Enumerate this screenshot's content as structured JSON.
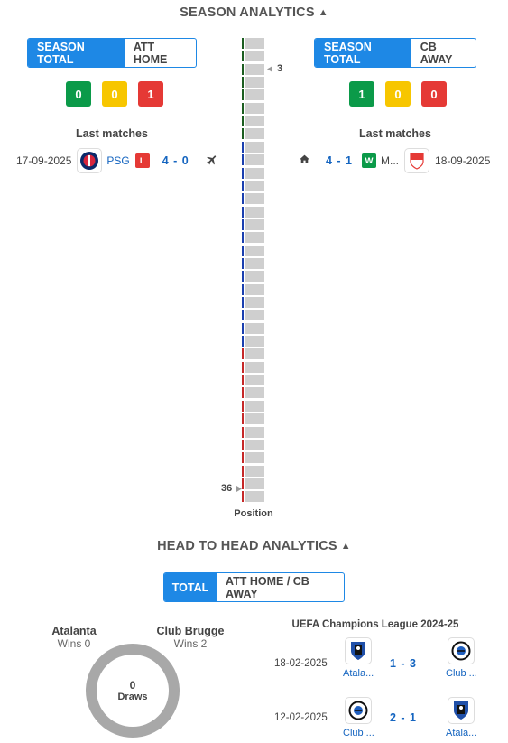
{
  "season": {
    "title": "SEASON ANALYTICS",
    "left": {
      "tabs": [
        "SEASON TOTAL",
        "ATT HOME"
      ],
      "counts": [
        "0",
        "0",
        "1"
      ],
      "last_matches_title": "Last matches",
      "match": {
        "date": "17-09-2025",
        "team": "PSG",
        "result": "L",
        "score": "4 - 0",
        "venue_icon": "plane-icon"
      }
    },
    "right": {
      "tabs": [
        "SEASON TOTAL",
        "CB AWAY"
      ],
      "counts": [
        "1",
        "0",
        "0"
      ],
      "last_matches_title": "Last matches",
      "match": {
        "date": "18-09-2025",
        "team": "M...",
        "result": "W",
        "score": "4 - 1",
        "venue_icon": "home-icon"
      }
    },
    "ladder": {
      "positions_total": 36,
      "marker_top": "3",
      "marker_bottom": "36",
      "caption": "Position",
      "zones": [
        {
          "from": 1,
          "to": 8,
          "color": "#1b5e20"
        },
        {
          "from": 9,
          "to": 24,
          "color": "#1a3fb0"
        },
        {
          "from": 25,
          "to": 36,
          "color": "#c62828"
        }
      ]
    }
  },
  "h2h": {
    "title": "HEAD TO HEAD ANALYTICS",
    "tabs": [
      "TOTAL",
      "ATT HOME / CB AWAY"
    ],
    "home": {
      "name": "Atalanta",
      "wins": "Wins 0"
    },
    "away": {
      "name": "Club Brugge",
      "wins": "Wins 2"
    },
    "draws": {
      "count": "0",
      "label": "Draws"
    },
    "competition": "UEFA Champions League 2024-25",
    "matches": [
      {
        "date": "18-02-2025",
        "home": "Atala...",
        "score": "1 - 3",
        "away": "Club ..."
      },
      {
        "date": "12-02-2025",
        "home": "Club ...",
        "score": "2 - 1",
        "away": "Atala..."
      }
    ]
  },
  "colors": {
    "accent": "#1e88e5",
    "win": "#0b9a49",
    "draw": "#f7c600",
    "loss": "#e53935",
    "link": "#1565c0"
  }
}
